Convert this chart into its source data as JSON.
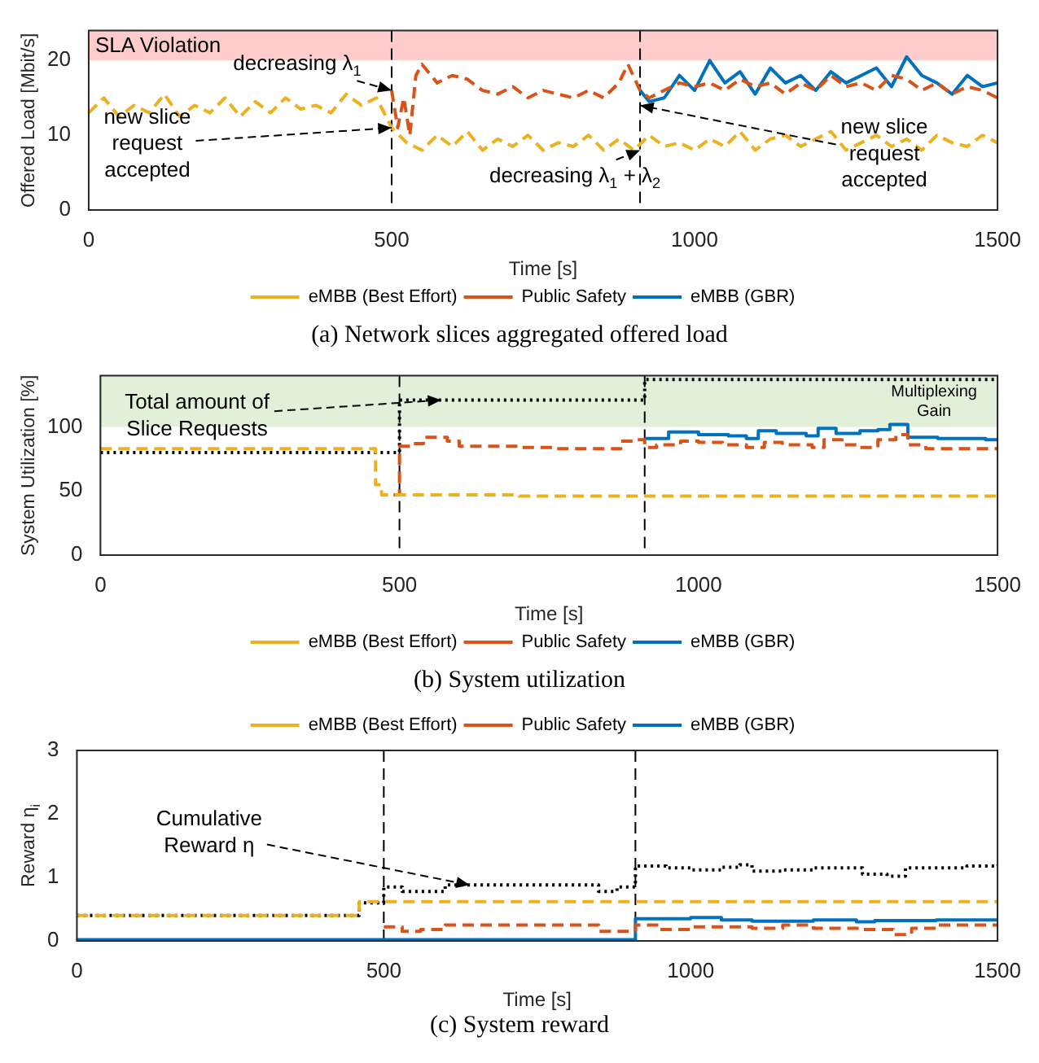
{
  "chart_data": [
    {
      "type": "line",
      "title": "(a) Network slices aggregated offered load",
      "xlabel": "Time [s]",
      "ylabel": "Offered Load [Mbit/s]",
      "xlim": [
        0,
        1500
      ],
      "xticks": [
        0,
        500,
        1000,
        1500
      ],
      "ylim": [
        0,
        24
      ],
      "yticks": [
        0,
        10,
        20
      ],
      "legend": "bottom",
      "series": [
        {
          "name": "eMBB (Best Effort)",
          "color": "#edb120",
          "line_style": "dashed",
          "x": [
            0,
            25,
            50,
            75,
            100,
            125,
            150,
            175,
            200,
            225,
            250,
            275,
            300,
            325,
            350,
            375,
            400,
            425,
            450,
            475,
            500,
            525,
            550,
            575,
            600,
            625,
            650,
            675,
            700,
            725,
            750,
            775,
            800,
            825,
            850,
            875,
            900,
            925,
            950,
            975,
            1000,
            1025,
            1050,
            1075,
            1100,
            1125,
            1150,
            1175,
            1200,
            1225,
            1250,
            1275,
            1300,
            1325,
            1350,
            1375,
            1400,
            1425,
            1450,
            1475,
            1500
          ],
          "values": [
            13,
            15,
            12.5,
            14,
            13,
            15.5,
            12.5,
            14,
            13,
            15,
            12.5,
            14.5,
            13,
            15,
            13.5,
            14,
            13,
            15.5,
            14,
            15,
            11,
            9,
            8,
            10,
            8.5,
            10.5,
            8,
            9.5,
            8.5,
            10,
            8,
            9,
            8.5,
            10,
            8,
            9.5,
            8,
            10,
            8.5,
            9,
            8,
            9.5,
            8.5,
            10.5,
            8,
            9.5,
            10,
            8.5,
            9.5,
            10.5,
            8,
            9,
            10,
            8.5,
            9.5,
            8,
            10,
            9,
            8.5,
            10,
            9
          ]
        },
        {
          "name": "Public Safety",
          "color": "#d95319",
          "line_style": "dashed",
          "x": [
            500,
            510,
            520,
            530,
            540,
            550,
            575,
            600,
            625,
            650,
            675,
            700,
            725,
            750,
            775,
            800,
            825,
            850,
            875,
            890,
            910,
            925,
            950,
            975,
            1000,
            1025,
            1050,
            1075,
            1100,
            1125,
            1150,
            1175,
            1200,
            1225,
            1250,
            1275,
            1300,
            1325,
            1350,
            1375,
            1400,
            1425,
            1450,
            1475,
            1500
          ],
          "values": [
            16,
            11,
            15,
            10,
            18,
            19.5,
            17,
            18,
            17.5,
            16,
            15.5,
            16.5,
            15,
            16,
            15.5,
            15,
            16,
            15,
            17,
            19.5,
            16,
            15,
            16,
            17,
            16.5,
            17,
            16,
            17.5,
            16.5,
            17,
            15.5,
            17,
            16,
            18,
            16.5,
            17,
            16,
            18,
            17.5,
            16,
            17,
            15.5,
            16.5,
            16,
            15
          ]
        },
        {
          "name": "eMBB (GBR)",
          "color": "#0072bd",
          "line_style": "solid",
          "x": [
            910,
            925,
            950,
            975,
            1000,
            1025,
            1050,
            1075,
            1100,
            1125,
            1150,
            1175,
            1200,
            1225,
            1250,
            1275,
            1300,
            1325,
            1350,
            1375,
            1400,
            1425,
            1450,
            1475,
            1500
          ],
          "values": [
            16,
            14.5,
            15,
            18,
            16,
            20,
            17,
            18.5,
            15.5,
            19,
            17,
            18,
            16,
            18.5,
            17,
            18,
            19,
            16.5,
            20.5,
            18,
            17,
            15.5,
            18,
            16.5,
            17
          ]
        }
      ],
      "ref_lines": [
        {
          "axis": "x",
          "value": 500,
          "color": "#000000",
          "line_style": "dashed"
        },
        {
          "axis": "x",
          "value": 910,
          "color": "#000000",
          "line_style": "dashed"
        }
      ],
      "bands": [
        {
          "axis": "y",
          "from": 20,
          "to": 24,
          "label": "SLA Violation",
          "color": "#ffcccc"
        }
      ],
      "annotations": [
        {
          "text": "decreasing λ$_{1}$",
          "x": 500,
          "y": 16
        },
        {
          "text": "new slice request accepted",
          "x": 500,
          "y": 11
        },
        {
          "text": "decreasing λ$_{1}$ + λ$_{2}$",
          "x": 910,
          "y": 8
        },
        {
          "text": "new slice request accepted",
          "x": 910,
          "y": 14
        }
      ]
    },
    {
      "type": "step",
      "title": "(b) System utilization",
      "xlabel": "Time [s]",
      "ylabel": "System Utilization [%]",
      "xlim": [
        0,
        1500
      ],
      "xticks": [
        0,
        500,
        1000,
        1500
      ],
      "ylim": [
        0,
        140
      ],
      "yticks": [
        0,
        50,
        100
      ],
      "legend": "bottom",
      "series": [
        {
          "name": "eMBB (Best Effort)",
          "color": "#edb120",
          "line_style": "dashed",
          "x": [
            0,
            460,
            470,
            700,
            1500
          ],
          "values": [
            83,
            55,
            47,
            46,
            46
          ]
        },
        {
          "name": "Public Safety",
          "color": "#d95319",
          "line_style": "dashed",
          "x": [
            490,
            500,
            520,
            540,
            580,
            600,
            700,
            760,
            870,
            890,
            910,
            930,
            970,
            1000,
            1040,
            1080,
            1110,
            1140,
            1190,
            1210,
            1240,
            1270,
            1300,
            1330,
            1350,
            1380,
            1500
          ],
          "values": [
            47,
            85,
            87,
            92,
            89,
            85,
            84,
            83,
            89,
            90,
            84,
            86,
            89,
            88,
            86,
            84,
            88,
            86,
            84,
            90,
            86,
            84,
            90,
            94,
            86,
            83,
            83
          ]
        },
        {
          "name": "eMBB (GBR)",
          "color": "#0072bd",
          "line_style": "solid",
          "x": [
            910,
            950,
            1000,
            1050,
            1080,
            1100,
            1130,
            1180,
            1200,
            1230,
            1270,
            1300,
            1320,
            1350,
            1400,
            1480,
            1500
          ],
          "values": [
            91,
            96,
            94,
            93,
            91,
            97,
            95,
            93,
            99,
            95,
            97,
            98,
            102,
            92,
            91,
            90,
            90
          ]
        },
        {
          "color": "#000000",
          "line_style": "dotted",
          "x": [
            0,
            500,
            910,
            1500
          ],
          "values": [
            80,
            121,
            137,
            137
          ]
        }
      ],
      "ref_lines": [
        {
          "axis": "x",
          "value": 500,
          "color": "#000000",
          "line_style": "dashed"
        },
        {
          "axis": "x",
          "value": 910,
          "color": "#000000",
          "line_style": "dashed"
        }
      ],
      "bands": [
        {
          "axis": "y",
          "from": 100,
          "to": 140,
          "label": "Multiplexing Gain",
          "color": "#e2efd9"
        }
      ],
      "annotations": [
        {
          "text": "Total amount of Slice Requests",
          "x": 570,
          "y": 121
        }
      ]
    },
    {
      "type": "step",
      "title": "(c) System reward",
      "xlabel": "Time [s]",
      "ylabel": "Reward η$_{i}$",
      "xlim": [
        0,
        1500
      ],
      "xticks": [
        0,
        500,
        1000,
        1500
      ],
      "ylim": [
        0,
        3
      ],
      "yticks": [
        0,
        1,
        2,
        3
      ],
      "legend": "top",
      "series": [
        {
          "name": "eMBB (Best Effort)",
          "color": "#edb120",
          "line_style": "dashed",
          "x": [
            0,
            460,
            1500
          ],
          "values": [
            0.4,
            0.62,
            0.62
          ]
        },
        {
          "name": "Public Safety",
          "color": "#d95319",
          "line_style": "dashed",
          "x": [
            500,
            530,
            560,
            600,
            850,
            910,
            950,
            1000,
            1100,
            1150,
            1200,
            1280,
            1330,
            1360,
            1400,
            1500
          ],
          "values": [
            0.22,
            0.15,
            0.18,
            0.25,
            0.15,
            0.25,
            0.18,
            0.22,
            0.2,
            0.25,
            0.2,
            0.18,
            0.1,
            0.2,
            0.25,
            0.25
          ]
        },
        {
          "name": "eMBB (GBR)",
          "color": "#0072bd",
          "line_style": "solid",
          "x": [
            0,
            910,
            1000,
            1050,
            1100,
            1200,
            1270,
            1300,
            1400,
            1500
          ],
          "values": [
            0.02,
            0.35,
            0.37,
            0.33,
            0.31,
            0.33,
            0.3,
            0.32,
            0.33,
            0.35
          ]
        },
        {
          "color": "#000000",
          "line_style": "dotted",
          "x": [
            0,
            460,
            500,
            530,
            600,
            850,
            880,
            910,
            960,
            1000,
            1050,
            1080,
            1100,
            1150,
            1200,
            1280,
            1320,
            1350,
            1450,
            1500
          ],
          "values": [
            0.4,
            0.6,
            0.85,
            0.78,
            0.88,
            0.78,
            0.85,
            1.18,
            1.15,
            1.12,
            1.16,
            1.2,
            1.1,
            1.12,
            1.15,
            1.05,
            1.02,
            1.15,
            1.18,
            1.2
          ]
        }
      ],
      "ref_lines": [
        {
          "axis": "x",
          "value": 500,
          "color": "#000000",
          "line_style": "dashed"
        },
        {
          "axis": "x",
          "value": 910,
          "color": "#000000",
          "line_style": "dashed"
        }
      ],
      "annotations": [
        {
          "text": "Cumulative Reward η",
          "x": 640,
          "y": 0.88
        }
      ]
    }
  ]
}
